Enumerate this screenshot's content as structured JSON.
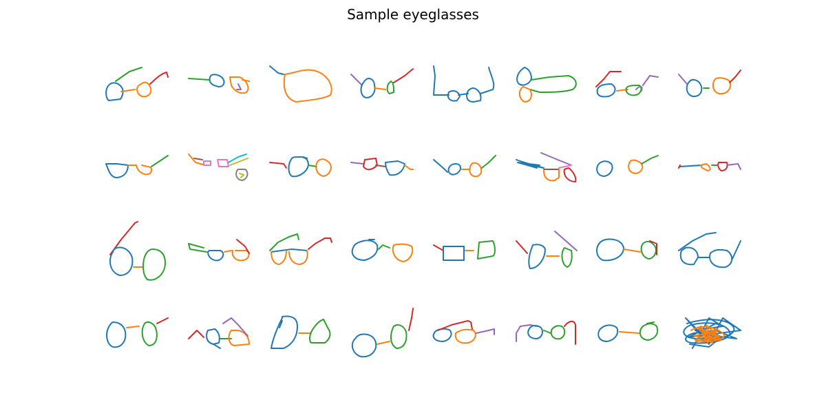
{
  "chart_data": {
    "type": "sketch-grid",
    "title": "Sample eyeglasses",
    "rows": 4,
    "cols": 8,
    "axes_visible": false,
    "stroke_palette": [
      "#1f77b4",
      "#ff7f0e",
      "#2ca02c",
      "#d62728",
      "#9467bd",
      "#8c564b",
      "#e377c2",
      "#7f7f7f",
      "#bcbd22",
      "#17becf"
    ],
    "sketch_count": 32
  }
}
